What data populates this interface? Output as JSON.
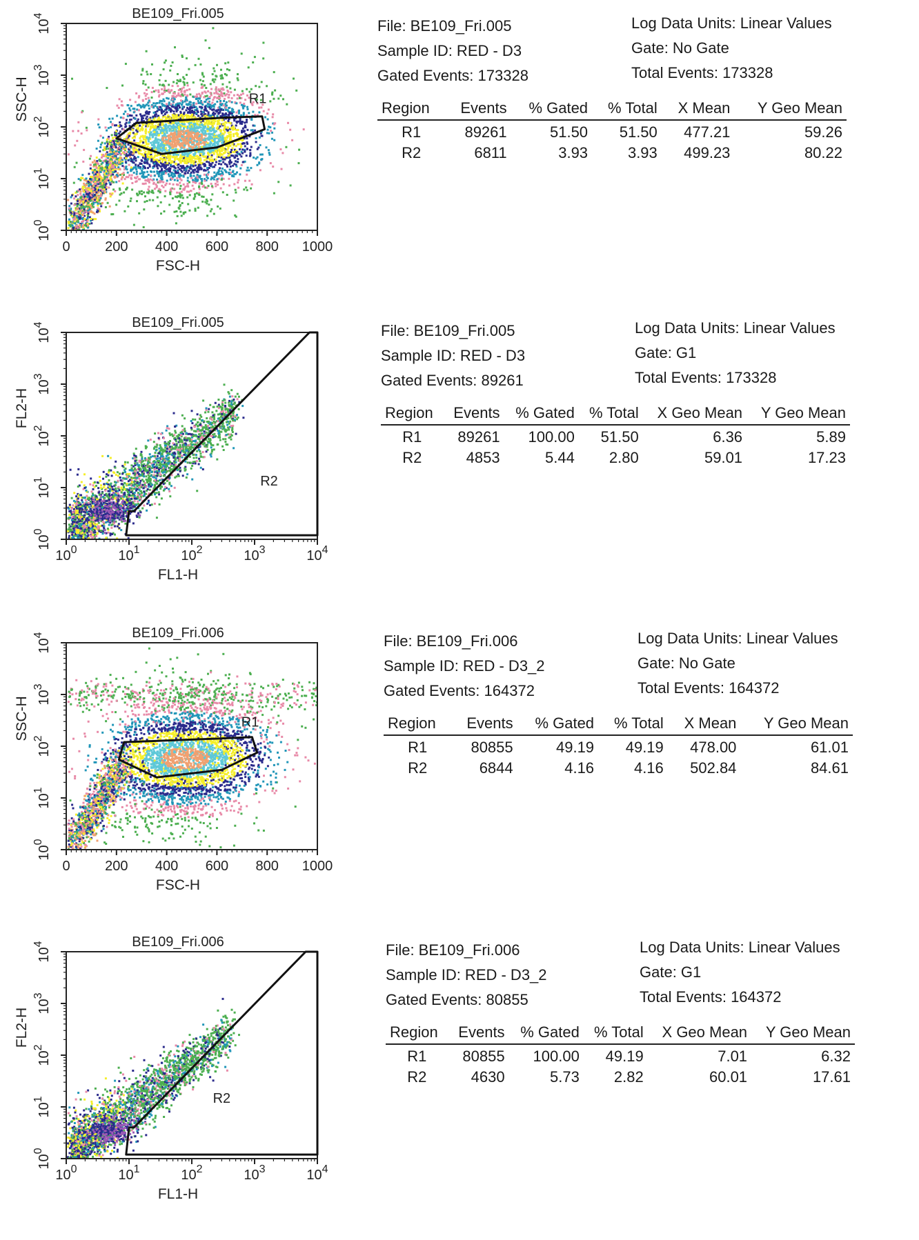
{
  "colors": {
    "low": "#4caf50",
    "mid_low": "#e88aa8",
    "mid": "#2196b8",
    "high": "#2b2b8c",
    "higher": "#f5ef2a",
    "peak": "#5ec8d8",
    "core": "#f0a070",
    "gate": "#111111"
  },
  "chart_data": [
    {
      "type": "scatter",
      "title": "BE109_Fri.005",
      "xlabel": "FSC-H",
      "ylabel": "SSC-H",
      "x_scale": "linear",
      "y_scale": "log",
      "xlim": [
        0,
        1000
      ],
      "ylim": [
        1,
        10000
      ],
      "x_ticks": [
        "0",
        "200",
        "400",
        "600",
        "800",
        "1000"
      ],
      "y_ticks": [
        "10",
        "10",
        "10",
        "10",
        "10"
      ],
      "y_tick_exp": [
        "0",
        "1",
        "2",
        "3",
        "4"
      ],
      "regions": [
        {
          "name": "R1",
          "points": [
            [
              200,
              60
            ],
            [
              380,
              30
            ],
            [
              600,
              40
            ],
            [
              790,
              90
            ],
            [
              780,
              160
            ],
            [
              620,
              150
            ],
            [
              280,
              120
            ]
          ]
        }
      ],
      "region_label": "R1",
      "density": {
        "center_x": 470,
        "center_y": 60,
        "spread_x": 260,
        "spread_log_y": 0.55,
        "tail": true,
        "upper_band": false
      },
      "info": {
        "file": "File: BE109_Fri.005",
        "sample": "Sample ID: RED - D3",
        "gated": "Gated Events: 173328",
        "units": "Log Data Units: Linear Values",
        "gate": "Gate: No Gate",
        "total": "Total Events: 173328"
      },
      "table": {
        "headers": [
          "Region",
          "Events",
          "% Gated",
          "% Total",
          "X Mean",
          "Y Geo Mean"
        ],
        "rows": [
          [
            "R1",
            "89261",
            "51.50",
            "51.50",
            "477.21",
            "59.26"
          ],
          [
            "R2",
            "6811",
            "3.93",
            "3.93",
            "499.23",
            "80.22"
          ]
        ]
      }
    },
    {
      "type": "scatter",
      "title": "BE109_Fri.005",
      "xlabel": "FL1-H",
      "ylabel": "FL2-H",
      "x_scale": "log",
      "y_scale": "log",
      "xlim": [
        1,
        10000
      ],
      "ylim": [
        1,
        10000
      ],
      "x_ticks": [
        "10",
        "10",
        "10",
        "10",
        "10"
      ],
      "x_tick_exp": [
        "0",
        "1",
        "2",
        "3",
        "4"
      ],
      "y_ticks": [
        "10",
        "10",
        "10",
        "10",
        "10"
      ],
      "y_tick_exp": [
        "0",
        "1",
        "2",
        "3",
        "4"
      ],
      "regions": [
        {
          "name": "R2",
          "points": [
            [
              9,
              1.2
            ],
            [
              10000,
              1.2
            ],
            [
              10000,
              10000
            ],
            [
              7500,
              10000
            ],
            [
              12,
              3.5
            ],
            [
              10,
              3.5
            ]
          ]
        }
      ],
      "region_label": "R2",
      "region_label_pos": [
        1700,
        11
      ],
      "density": {
        "diag": true,
        "start_log": 0.1,
        "end_log": 2.7,
        "spread": 0.35
      },
      "info": {
        "file": "File: BE109_Fri.005",
        "sample": "Sample ID: RED - D3",
        "gated": "Gated Events: 89261",
        "units": "Log Data Units: Linear Values",
        "gate": "Gate: G1",
        "total": "Total Events: 173328"
      },
      "table": {
        "headers": [
          "Region",
          "Events",
          "% Gated",
          "% Total",
          "X Geo Mean",
          "Y Geo Mean"
        ],
        "rows": [
          [
            "R1",
            "89261",
            "100.00",
            "51.50",
            "6.36",
            "5.89"
          ],
          [
            "R2",
            "4853",
            "5.44",
            "2.80",
            "59.01",
            "17.23"
          ]
        ]
      }
    },
    {
      "type": "scatter",
      "title": "BE109_Fri.006",
      "xlabel": "FSC-H",
      "ylabel": "SSC-H",
      "x_scale": "linear",
      "y_scale": "log",
      "xlim": [
        0,
        1000
      ],
      "ylim": [
        1,
        10000
      ],
      "x_ticks": [
        "0",
        "200",
        "400",
        "600",
        "800",
        "1000"
      ],
      "y_ticks": [
        "10",
        "10",
        "10",
        "10",
        "10"
      ],
      "y_tick_exp": [
        "0",
        "1",
        "2",
        "3",
        "4"
      ],
      "regions": [
        {
          "name": "R1",
          "points": [
            [
              210,
              55
            ],
            [
              360,
              25
            ],
            [
              620,
              35
            ],
            [
              760,
              75
            ],
            [
              740,
              150
            ],
            [
              600,
              140
            ],
            [
              230,
              120
            ]
          ]
        }
      ],
      "region_label": "R1",
      "density": {
        "center_x": 470,
        "center_y": 60,
        "spread_x": 280,
        "spread_log_y": 0.6,
        "tail": true,
        "upper_band": true
      },
      "info": {
        "file": "File: BE109_Fri.006",
        "sample": "Sample ID: RED - D3_2",
        "gated": "Gated Events: 164372",
        "units": "Log Data Units: Linear Values",
        "gate": "Gate: No Gate",
        "total": "Total Events: 164372"
      },
      "table": {
        "headers": [
          "Region",
          "Events",
          "% Gated",
          "% Total",
          "X Mean",
          "Y Geo Mean"
        ],
        "rows": [
          [
            "R1",
            "80855",
            "49.19",
            "49.19",
            "478.00",
            "61.01"
          ],
          [
            "R2",
            "6844",
            "4.16",
            "4.16",
            "502.84",
            "84.61"
          ]
        ]
      }
    },
    {
      "type": "scatter",
      "title": "BE109_Fri.006",
      "xlabel": "FL1-H",
      "ylabel": "FL2-H",
      "x_scale": "log",
      "y_scale": "log",
      "xlim": [
        1,
        10000
      ],
      "ylim": [
        1,
        10000
      ],
      "x_ticks": [
        "10",
        "10",
        "10",
        "10",
        "10"
      ],
      "x_tick_exp": [
        "0",
        "1",
        "2",
        "3",
        "4"
      ],
      "y_ticks": [
        "10",
        "10",
        "10",
        "10",
        "10"
      ],
      "y_tick_exp": [
        "0",
        "1",
        "2",
        "3",
        "4"
      ],
      "regions": [
        {
          "name": "R2",
          "points": [
            [
              9,
              1.2
            ],
            [
              10000,
              1.2
            ],
            [
              10000,
              10000
            ],
            [
              6500,
              10000
            ],
            [
              12,
              4
            ],
            [
              10,
              4
            ]
          ]
        }
      ],
      "region_label": "R2",
      "region_label_pos": [
        300,
        12
      ],
      "density": {
        "diag": true,
        "start_log": 0.1,
        "end_log": 2.6,
        "spread": 0.33
      },
      "info": {
        "file": "File: BE109_Fri.006",
        "sample": "Sample ID: RED - D3_2",
        "gated": "Gated Events: 80855",
        "units": "Log Data Units: Linear Values",
        "gate": "Gate: G1",
        "total": "Total Events: 164372"
      },
      "table": {
        "headers": [
          "Region",
          "Events",
          "% Gated",
          "% Total",
          "X Geo Mean",
          "Y Geo Mean"
        ],
        "rows": [
          [
            "R1",
            "80855",
            "100.00",
            "49.19",
            "7.01",
            "6.32"
          ],
          [
            "R2",
            "4630",
            "5.73",
            "2.82",
            "60.01",
            "17.61"
          ]
        ]
      }
    }
  ]
}
